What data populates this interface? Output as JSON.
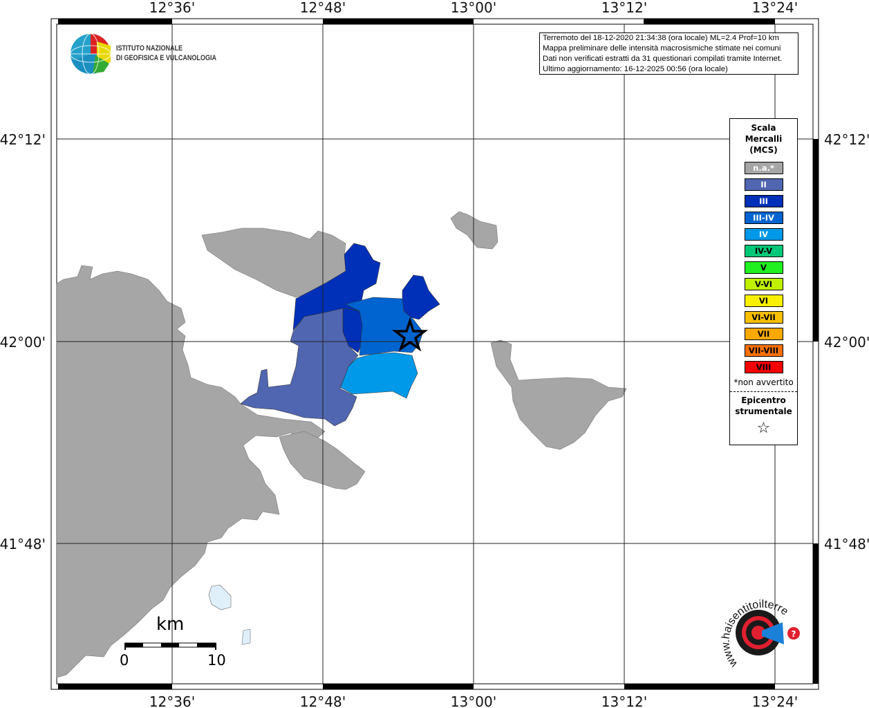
{
  "map": {
    "lon_ticks": [
      "12°36'",
      "12°48'",
      "13°00'",
      "13°12'",
      "13°24'"
    ],
    "lat_ticks": [
      "42°12'",
      "42°00'",
      "41°48'"
    ],
    "epicenter_symbol": "star-icon"
  },
  "info_box": {
    "lines": [
      "Terremoto del 18-12-2020 21:34:38 (ora locale) ML=2.4 Prof=10 km",
      "Mappa preliminare delle intensità macrosismiche stimate nei comuni",
      "Dati non verificati estratti da 31 questionari compilati tramite Internet.",
      "Ultimo aggiornamento: 16-12-2025 00:56 (ora locale)"
    ]
  },
  "logo_ingv": {
    "line1": "ISTITUTO NAZIONALE",
    "line2": "DI GEOFISICA E VULCANOLOGIA"
  },
  "logo_hsit": {
    "text": "www.haisentitoilterremoto.it"
  },
  "legend": {
    "title_lines": [
      "Scala",
      "Mercalli",
      "(MCS)"
    ],
    "classes": [
      {
        "label": "n.a.*",
        "color": "#a6a6a6",
        "text_color": "#ffffff"
      },
      {
        "label": "II",
        "color": "#5066b0",
        "text_color": "#ffffff"
      },
      {
        "label": "III",
        "color": "#0030b8",
        "text_color": "#ffffff"
      },
      {
        "label": "III-IV",
        "color": "#0064d0",
        "text_color": "#ffffff"
      },
      {
        "label": "IV",
        "color": "#0098e8",
        "text_color": "#ffffff"
      },
      {
        "label": "IV-V",
        "color": "#00c878",
        "text_color": "#000000"
      },
      {
        "label": "V",
        "color": "#20f020",
        "text_color": "#000000"
      },
      {
        "label": "V-VI",
        "color": "#c0f000",
        "text_color": "#000000"
      },
      {
        "label": "VI",
        "color": "#f8f000",
        "text_color": "#000000"
      },
      {
        "label": "VI-VII",
        "color": "#f8c000",
        "text_color": "#000000"
      },
      {
        "label": "VII",
        "color": "#f8a800",
        "text_color": "#000000"
      },
      {
        "label": "VII-VIII",
        "color": "#f87000",
        "text_color": "#000000"
      },
      {
        "label": "VIII",
        "color": "#f80000",
        "text_color": "#000000"
      }
    ],
    "note": "*non avvertito",
    "epicenter_lines": [
      "Epicentro",
      "strumentale"
    ],
    "epicenter_symbol": "☆"
  },
  "scale_bar": {
    "unit": "km",
    "min": "0",
    "max": "10"
  }
}
